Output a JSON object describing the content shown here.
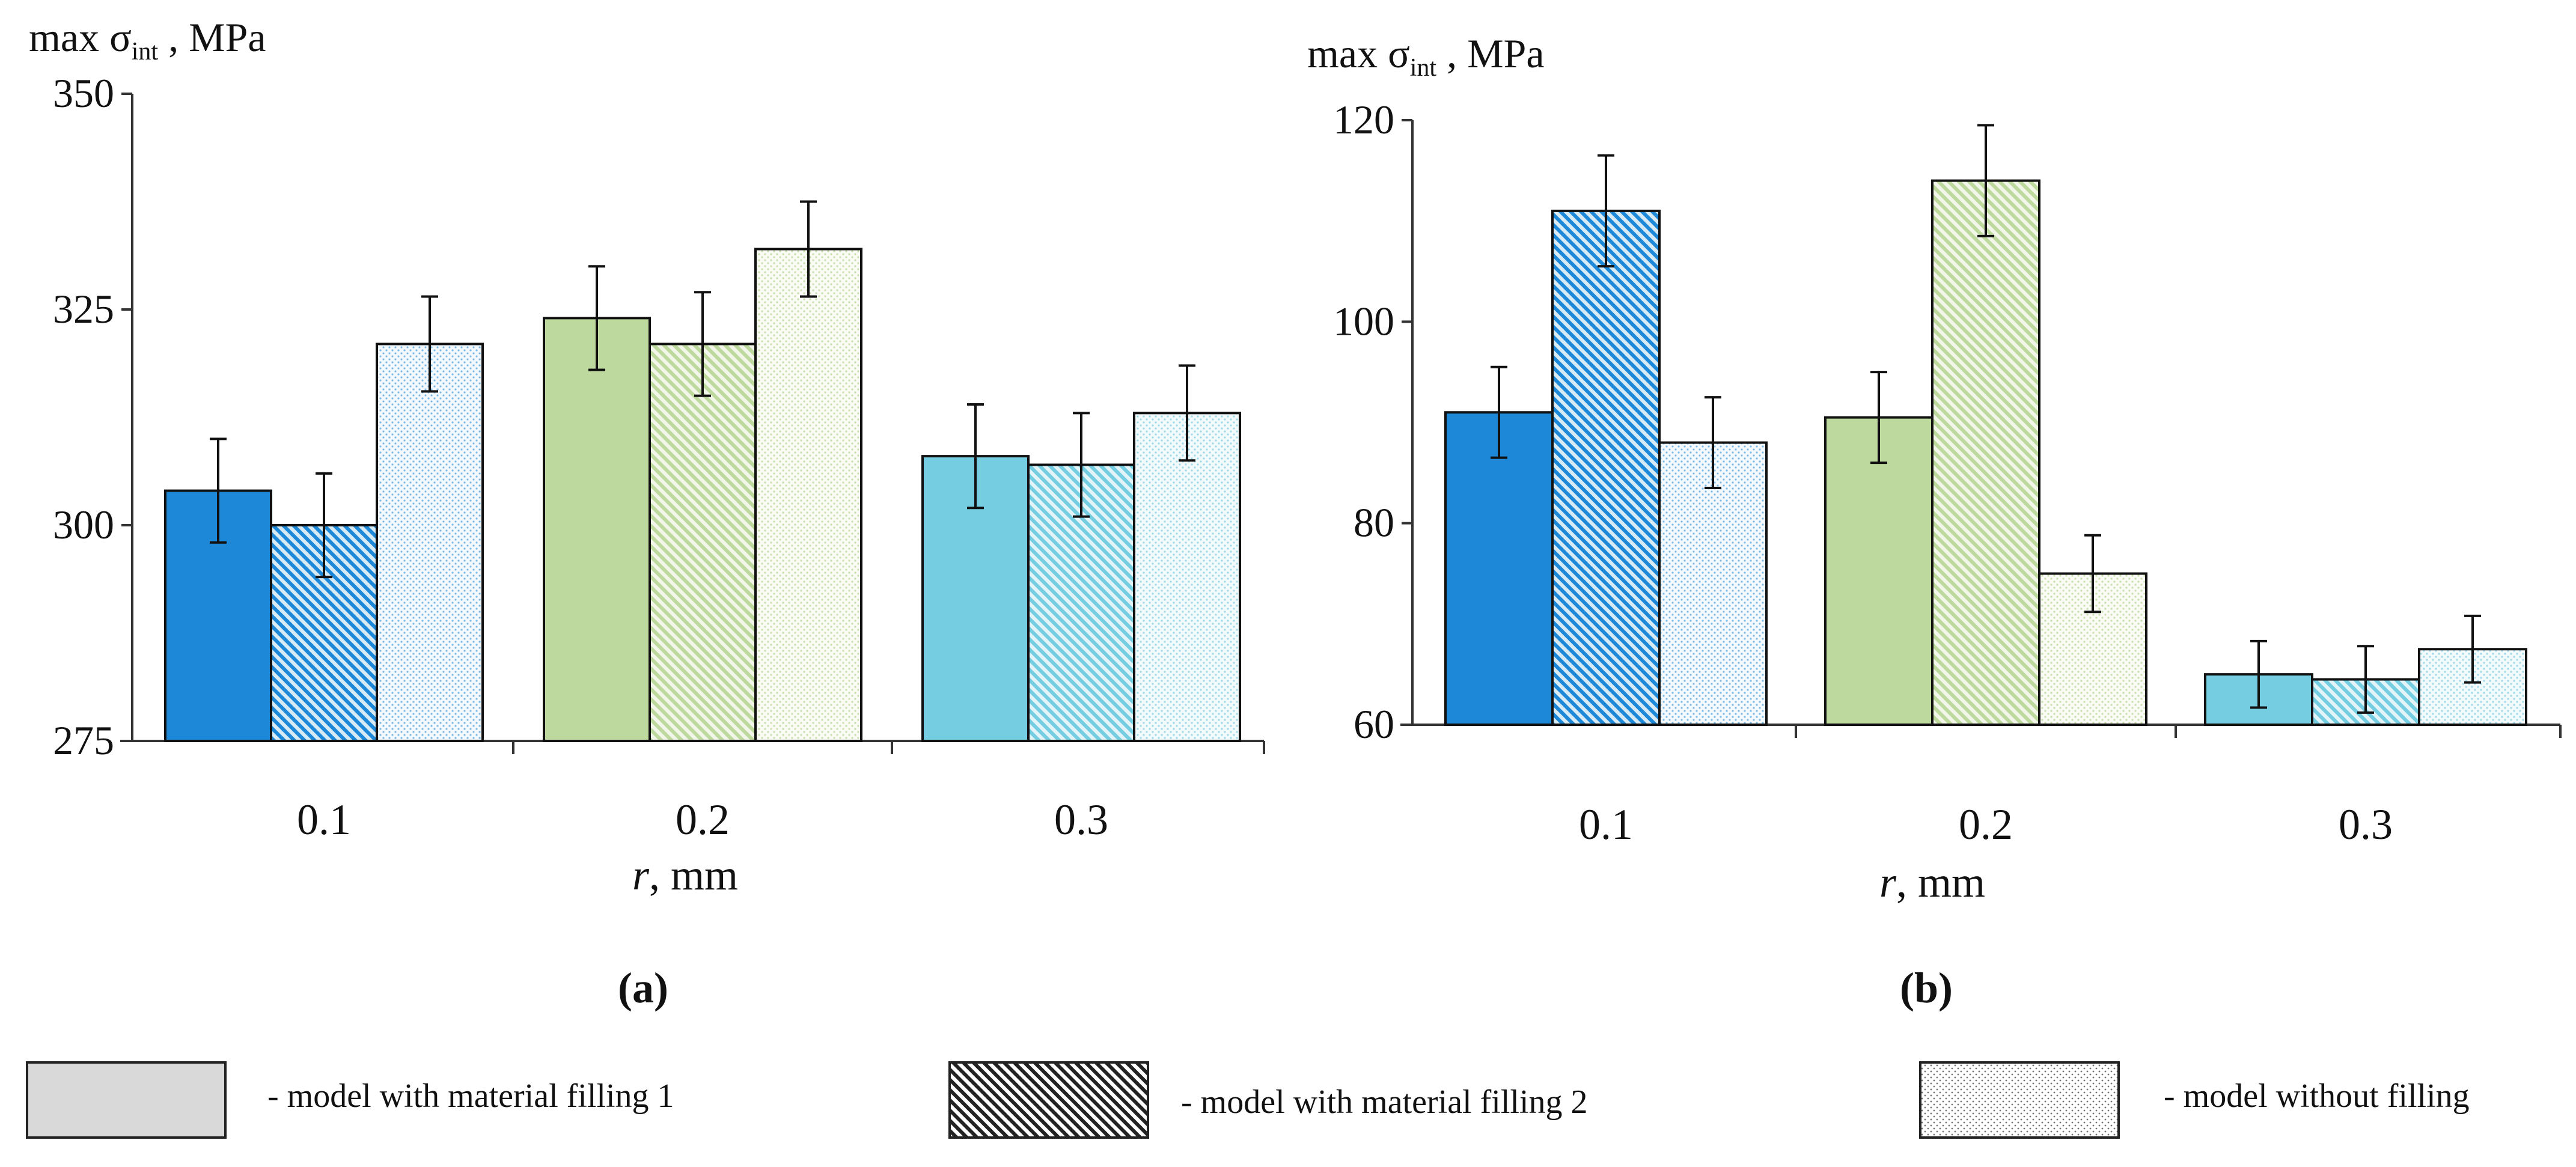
{
  "colors": {
    "r01": "#1e88d8",
    "r02": "#bdd99e",
    "r03": "#74cde0",
    "r01_light": "#d7ebf7",
    "r02_light": "#f1f6e9",
    "r03_light": "#e3f4f8",
    "axis": "#333333",
    "legend_gray": "#d9d9d9"
  },
  "chart_data": [
    {
      "type": "bar",
      "panel_label": "(a)",
      "ylabel_prefix": "max σ",
      "ylabel_sub": "int",
      "ylabel_suffix": " , MPa",
      "xlabel_var": "r",
      "xlabel_unit": ", mm",
      "ylim": [
        275,
        350
      ],
      "yticks": [
        "275",
        "300",
        "325",
        "350"
      ],
      "categories": [
        "0.1",
        "0.2",
        "0.3"
      ],
      "series": [
        {
          "name": "model with material filling 1",
          "values": [
            304,
            324,
            308
          ],
          "errors": [
            6,
            6,
            6
          ]
        },
        {
          "name": "model with material filling 2",
          "values": [
            300,
            321,
            307
          ],
          "errors": [
            6,
            6,
            6
          ]
        },
        {
          "name": "model without filling",
          "values": [
            321,
            332,
            313
          ],
          "errors": [
            5.5,
            5.5,
            5.5
          ]
        }
      ]
    },
    {
      "type": "bar",
      "panel_label": "(b)",
      "ylabel_prefix": "max σ",
      "ylabel_sub": "int",
      "ylabel_suffix": " , MPa",
      "xlabel_var": "r",
      "xlabel_unit": ", mm",
      "ylim": [
        60,
        120
      ],
      "yticks": [
        "60",
        "80",
        "100",
        "120"
      ],
      "categories": [
        "0.1",
        "0.2",
        "0.3"
      ],
      "series": [
        {
          "name": "model with material filling 1",
          "values": [
            91,
            90.5,
            65
          ],
          "errors": [
            4.5,
            4.5,
            3.3
          ]
        },
        {
          "name": "model with material filling 2",
          "values": [
            111,
            114,
            64.5
          ],
          "errors": [
            5.5,
            5.5,
            3.3
          ]
        },
        {
          "name": "model without filling",
          "values": [
            88,
            75,
            67.5
          ],
          "errors": [
            4.5,
            3.8,
            3.3
          ]
        }
      ]
    }
  ],
  "legend": [
    {
      "label": "- model with material filling 1",
      "pattern": "solid"
    },
    {
      "label": "- model with material filling 2",
      "pattern": "hatch"
    },
    {
      "label": "- model without filling",
      "pattern": "dots"
    }
  ]
}
